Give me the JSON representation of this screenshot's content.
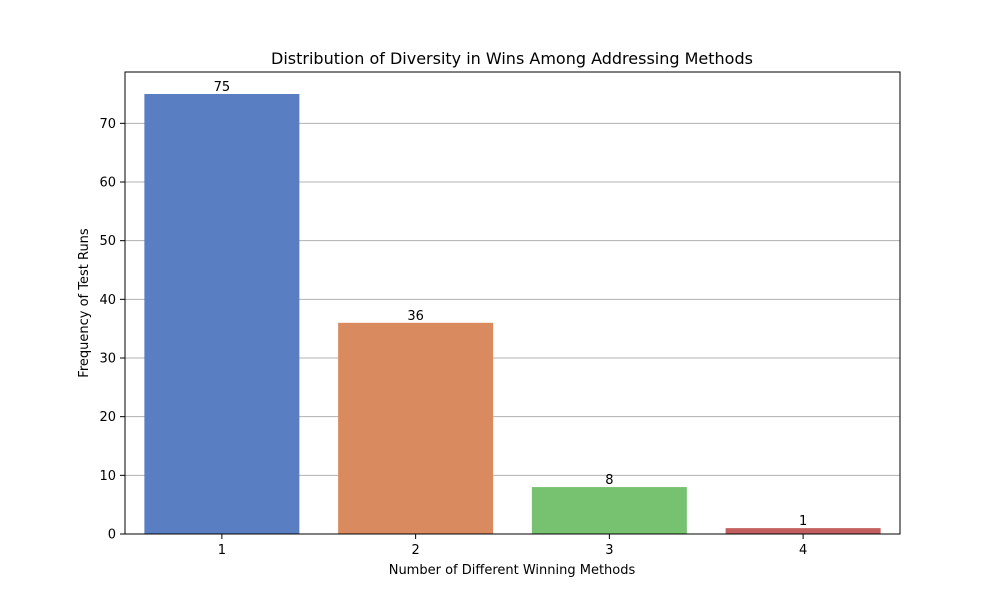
{
  "chart_data": {
    "type": "bar",
    "title": "Distribution of Diversity in Wins Among Addressing Methods",
    "xlabel": "Number of Different Winning Methods",
    "ylabel": "Frequency of Test Runs",
    "categories": [
      "1",
      "2",
      "3",
      "4"
    ],
    "values": [
      75,
      36,
      8,
      1
    ],
    "data_labels": [
      "75",
      "36",
      "8",
      "1"
    ],
    "colors": [
      "#5a7ec2",
      "#da8a5f",
      "#77c271",
      "#c35f5f"
    ],
    "ylim": [
      0,
      78.75
    ],
    "yticks": [
      0,
      10,
      20,
      30,
      40,
      50,
      60,
      70
    ],
    "grid": "y-major"
  }
}
